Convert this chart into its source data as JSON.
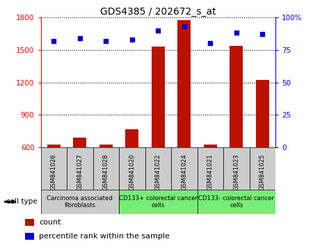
{
  "title": "GDS4385 / 202672_s_at",
  "samples": [
    "GSM841026",
    "GSM841027",
    "GSM841028",
    "GSM841020",
    "GSM841022",
    "GSM841024",
    "GSM841021",
    "GSM841023",
    "GSM841025"
  ],
  "counts": [
    625,
    695,
    625,
    770,
    1530,
    1770,
    625,
    1535,
    1220
  ],
  "percentile_ranks": [
    82,
    84,
    82,
    83,
    90,
    93,
    80,
    88,
    87
  ],
  "groups": [
    {
      "label": "Carcinoma associated\nfibroblasts",
      "start": 0,
      "end": 3,
      "color": "#cccccc"
    },
    {
      "label": "CD133+ colorectal cancer\ncells",
      "start": 3,
      "end": 6,
      "color": "#77ee77"
    },
    {
      "label": "CD133- colorectal cancer\ncells",
      "start": 6,
      "end": 9,
      "color": "#77ee77"
    }
  ],
  "bar_color": "#bb1100",
  "dot_color": "#0000cc",
  "ylim_left": [
    600,
    1800
  ],
  "yticks_left": [
    600,
    900,
    1200,
    1500,
    1800
  ],
  "ylim_right": [
    0,
    100
  ],
  "yticks_right": [
    0,
    25,
    50,
    75,
    100
  ],
  "cell_type_label": "cell type",
  "legend_count_label": "count",
  "legend_pct_label": "percentile rank within the sample",
  "bar_width": 0.5,
  "sample_box_color": "#cccccc"
}
